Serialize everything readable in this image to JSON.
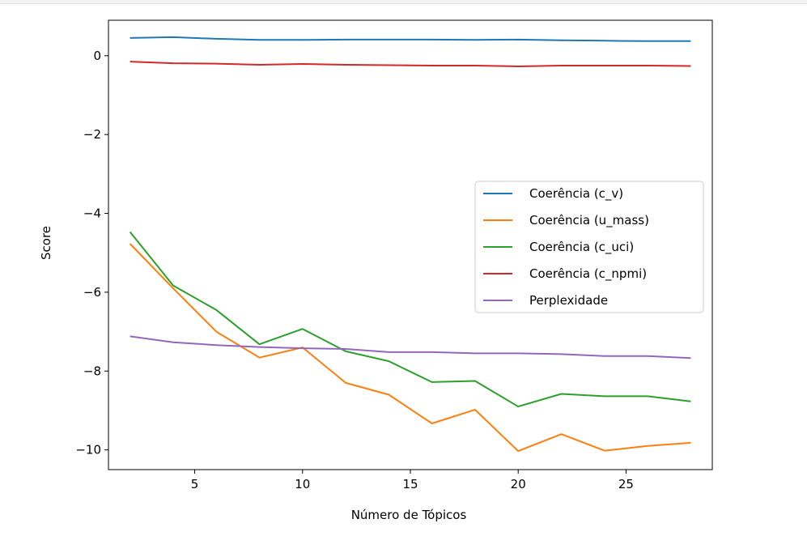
{
  "chart_data": {
    "type": "line",
    "title": "",
    "xlabel": "Número de Tópicos",
    "ylabel": "Score",
    "xlim": [
      1,
      29
    ],
    "ylim": [
      -10.5,
      0.9
    ],
    "xticks": [
      5,
      10,
      15,
      20,
      25
    ],
    "yticks": [
      0,
      -2,
      -4,
      -6,
      -8,
      -10
    ],
    "ytick_labels": [
      "0",
      "−2",
      "−4",
      "−6",
      "−8",
      "−10"
    ],
    "grid": false,
    "legend_position": "center-right",
    "x": [
      2,
      4,
      6,
      8,
      10,
      12,
      14,
      16,
      18,
      20,
      22,
      24,
      26,
      28
    ],
    "series": [
      {
        "name": "Coerência (c_v)",
        "color": "#1f77b4",
        "values": [
          0.45,
          0.47,
          0.43,
          0.4,
          0.4,
          0.41,
          0.41,
          0.41,
          0.4,
          0.41,
          0.39,
          0.38,
          0.37,
          0.37
        ]
      },
      {
        "name": "Coerência (u_mass)",
        "color": "#ff7f0e",
        "values": [
          -4.77,
          -5.9,
          -7.0,
          -7.66,
          -7.4,
          -8.3,
          -8.6,
          -9.33,
          -8.98,
          -10.03,
          -9.6,
          -10.02,
          -9.9,
          -9.82
        ]
      },
      {
        "name": "Coerência (c_uci)",
        "color": "#2ca02c",
        "values": [
          -4.47,
          -5.83,
          -6.45,
          -7.32,
          -6.93,
          -7.5,
          -7.75,
          -8.28,
          -8.25,
          -8.9,
          -8.58,
          -8.64,
          -8.64,
          -8.77
        ]
      },
      {
        "name": "Coerência (c_npmi)",
        "color": "#d62728",
        "values": [
          -0.15,
          -0.19,
          -0.2,
          -0.23,
          -0.21,
          -0.23,
          -0.24,
          -0.25,
          -0.25,
          -0.27,
          -0.25,
          -0.25,
          -0.25,
          -0.26
        ]
      },
      {
        "name": "Perplexidade",
        "color": "#9467bd",
        "values": [
          -7.12,
          -7.27,
          -7.34,
          -7.39,
          -7.42,
          -7.44,
          -7.52,
          -7.52,
          -7.55,
          -7.55,
          -7.57,
          -7.62,
          -7.62,
          -7.67
        ]
      }
    ]
  }
}
